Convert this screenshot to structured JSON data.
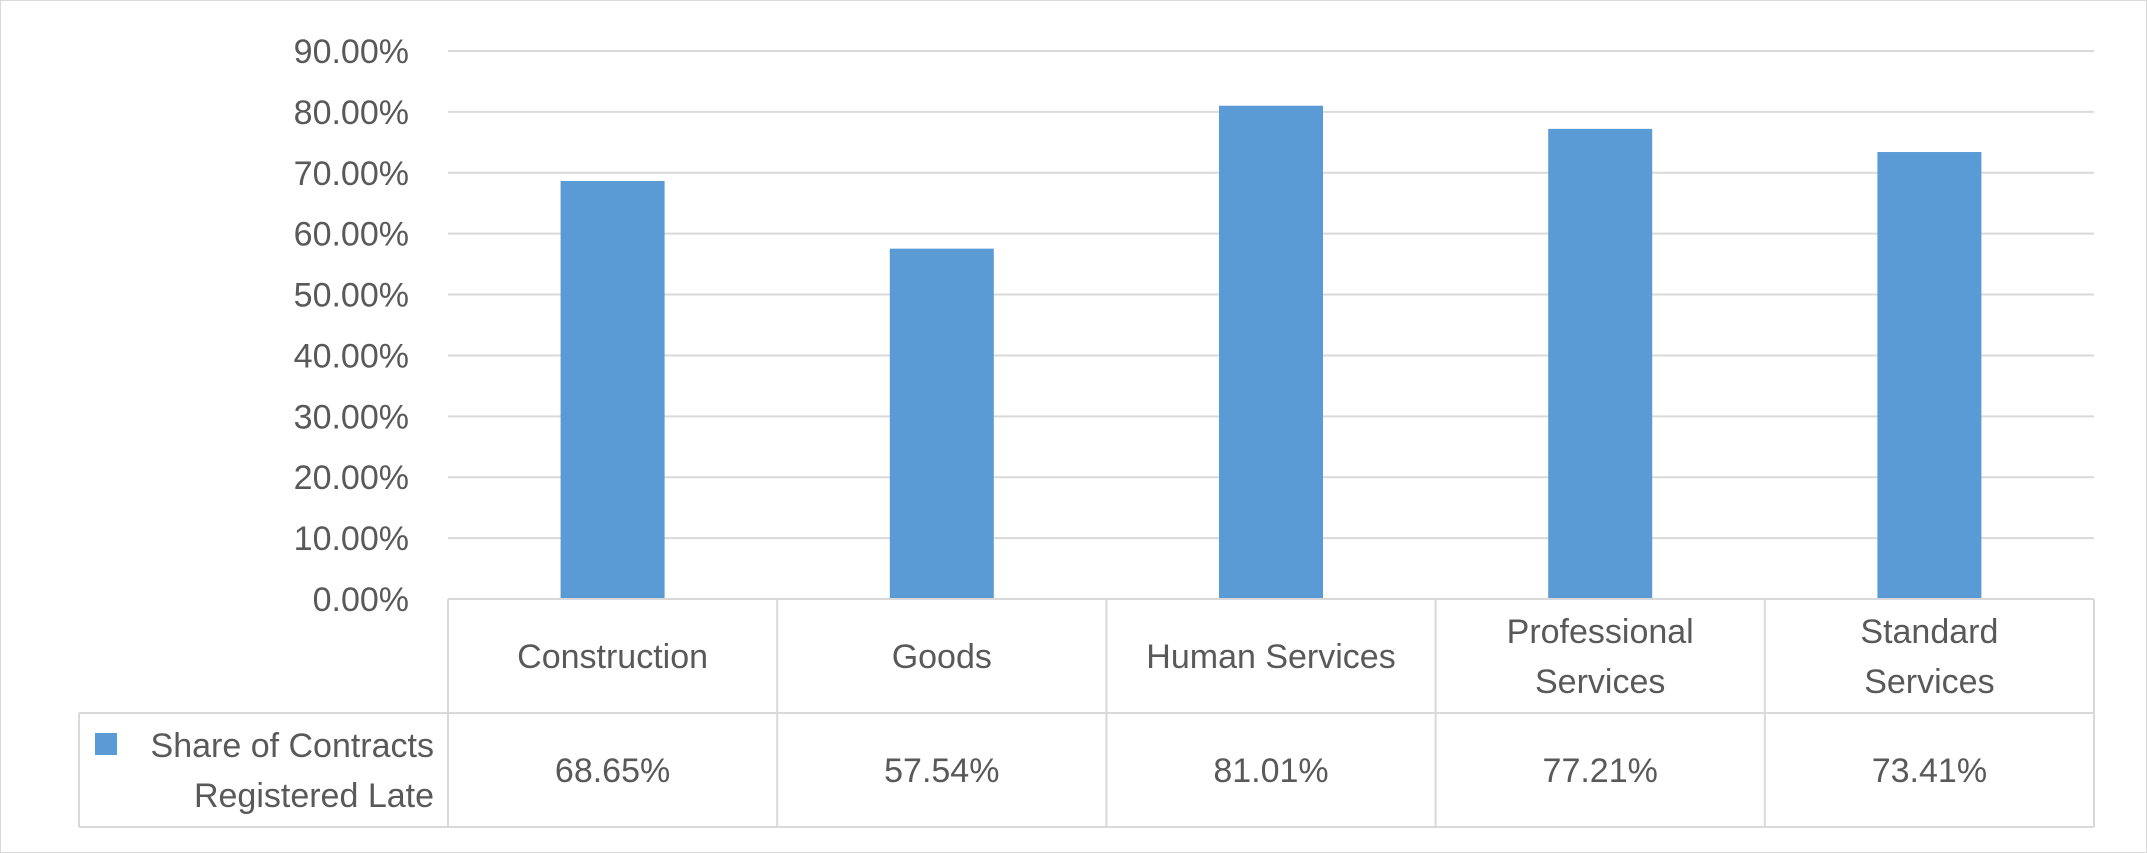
{
  "chart_data": {
    "type": "bar",
    "categories": [
      [
        "Construction"
      ],
      [
        "Goods"
      ],
      [
        "Human Services"
      ],
      [
        "Professional",
        "Services"
      ],
      [
        "Standard",
        "Services"
      ]
    ],
    "series": [
      {
        "name_lines": [
          "Share of Contracts",
          "Registered Late"
        ],
        "values": [
          68.65,
          57.54,
          81.01,
          77.21,
          73.41
        ],
        "value_labels": [
          "68.65%",
          "57.54%",
          "81.01%",
          "77.21%",
          "73.41%"
        ],
        "color": "#5b9bd5"
      }
    ],
    "ylim": [
      0,
      90
    ],
    "y_ticks": [
      0,
      10,
      20,
      30,
      40,
      50,
      60,
      70,
      80,
      90
    ],
    "y_tick_labels": [
      "0.00%",
      "10.00%",
      "20.00%",
      "30.00%",
      "40.00%",
      "50.00%",
      "60.00%",
      "70.00%",
      "80.00%",
      "90.00%"
    ],
    "grid": true,
    "gridline_color": "#d9d9d9",
    "data_table": true,
    "legend": "in-data-table"
  }
}
